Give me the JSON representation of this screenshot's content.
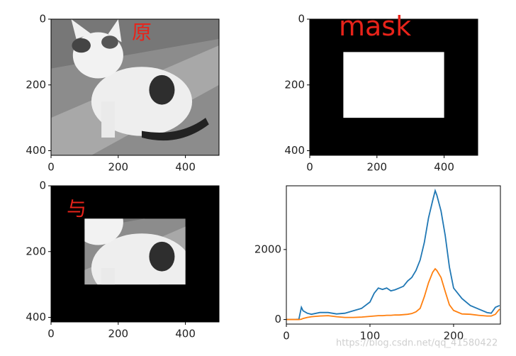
{
  "chart_data": [
    {
      "type": "image",
      "annotation": "原",
      "xlim": [
        0,
        500
      ],
      "ylim": [
        414,
        0
      ],
      "xticks": [
        0,
        200,
        400
      ],
      "yticks": [
        0,
        200,
        400
      ]
    },
    {
      "type": "mask",
      "annotation": "mask",
      "xlim": [
        0,
        500
      ],
      "ylim": [
        414,
        0
      ],
      "xticks": [
        0,
        200,
        400
      ],
      "yticks": [
        0,
        200,
        400
      ],
      "mask_x": [
        100,
        400
      ],
      "mask_y": [
        100,
        300
      ]
    },
    {
      "type": "masked-image",
      "annotation": "与",
      "xlim": [
        0,
        500
      ],
      "ylim": [
        414,
        0
      ],
      "xticks": [
        0,
        200,
        400
      ],
      "yticks": [
        0,
        200,
        400
      ],
      "mask_x": [
        100,
        400
      ],
      "mask_y": [
        100,
        300
      ]
    },
    {
      "type": "line",
      "xlim": [
        0,
        256
      ],
      "ylim": [
        -130,
        3820
      ],
      "xticks": [
        0,
        100,
        200
      ],
      "yticks": [
        0,
        2000
      ],
      "x": [
        0,
        10,
        15,
        18,
        20,
        25,
        30,
        40,
        50,
        60,
        70,
        80,
        90,
        100,
        105,
        110,
        115,
        120,
        125,
        130,
        135,
        140,
        145,
        150,
        155,
        160,
        165,
        170,
        175,
        178,
        180,
        185,
        190,
        195,
        200,
        210,
        220,
        230,
        240,
        245,
        250,
        255
      ],
      "series": [
        {
          "color": "#1f77b4",
          "values": [
            0,
            0,
            10,
            350,
            250,
            180,
            150,
            200,
            200,
            160,
            180,
            250,
            320,
            500,
            750,
            900,
            860,
            900,
            820,
            850,
            900,
            950,
            1100,
            1200,
            1400,
            1700,
            2200,
            2900,
            3400,
            3680,
            3550,
            3100,
            2400,
            1500,
            900,
            600,
            400,
            300,
            200,
            180,
            350,
            400
          ]
        },
        {
          "color": "#ff7f0e",
          "values": [
            0,
            0,
            0,
            10,
            30,
            60,
            80,
            100,
            110,
            80,
            60,
            60,
            70,
            90,
            100,
            110,
            110,
            120,
            120,
            130,
            130,
            140,
            150,
            170,
            220,
            320,
            650,
            1050,
            1350,
            1450,
            1400,
            1200,
            800,
            420,
            260,
            160,
            150,
            120,
            100,
            100,
            150,
            300
          ]
        }
      ]
    }
  ],
  "watermark": "https://blog.csdn.net/qq_41580422"
}
